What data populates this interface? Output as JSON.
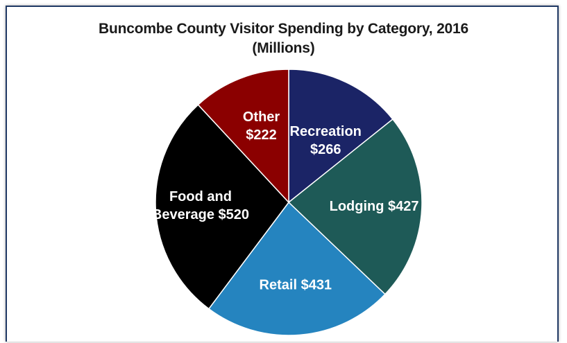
{
  "chart_data": {
    "type": "pie",
    "title": "Buncombe County Visitor Spending by Category, 2016",
    "subtitle": "(Millions)",
    "slices": [
      {
        "label_lines": [
          "Recreation",
          "$266"
        ],
        "category": "Recreation",
        "value": 266,
        "color": "#1b2466"
      },
      {
        "label_lines": [
          "Lodging $427"
        ],
        "category": "Lodging",
        "value": 427,
        "color": "#1e5a57"
      },
      {
        "label_lines": [
          "Retail $431"
        ],
        "category": "Retail",
        "value": 431,
        "color": "#2584bf"
      },
      {
        "label_lines": [
          "Food and",
          "Beverage $520"
        ],
        "category": "Food and Beverage",
        "value": 520,
        "color": "#000000"
      },
      {
        "label_lines": [
          "Other",
          "$222"
        ],
        "category": "Other",
        "value": 222,
        "color": "#8b0000"
      }
    ]
  }
}
